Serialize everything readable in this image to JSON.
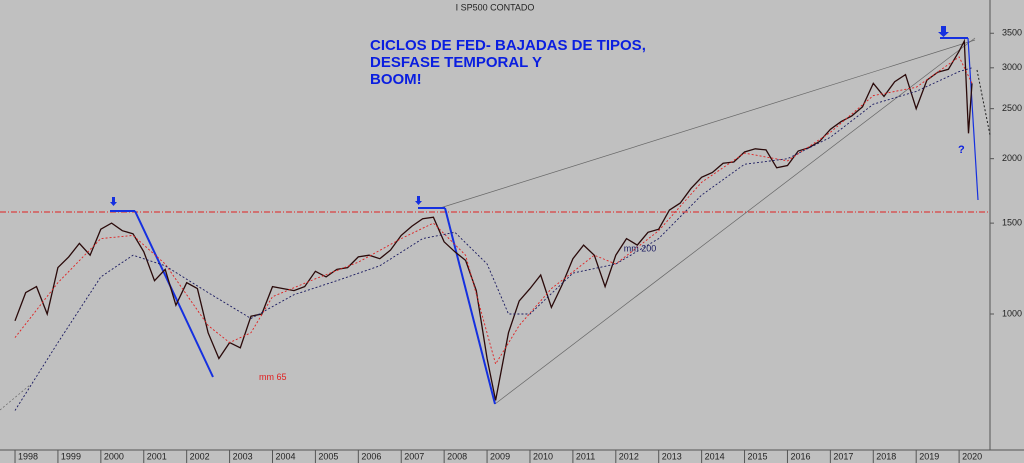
{
  "chart_data": {
    "type": "line",
    "title": "I SP500 CONTADO",
    "annotation": [
      "CICLOS DE FED- BAJADAS DE TIPOS,",
      "DESFASE TEMPORAL Y",
      "BOOM!"
    ],
    "question": "?",
    "log_scale": true,
    "xlim": [
      1997.65,
      2020.72
    ],
    "ylim": [
      545,
      4060
    ],
    "xticks": [
      1998,
      1999,
      2000,
      2001,
      2002,
      2003,
      2004,
      2005,
      2006,
      2007,
      2008,
      2009,
      2010,
      2011,
      2012,
      2013,
      2014,
      2015,
      2016,
      2017,
      2018,
      2019,
      2020
    ],
    "yticks": [
      1000,
      1500,
      2000,
      2500,
      3000,
      3500
    ],
    "series": [
      {
        "color": "#2a0a0a",
        "style": "solid",
        "x": [
          1998.0,
          1998.25,
          1998.5,
          1998.75,
          1999.0,
          1999.25,
          1999.5,
          1999.75,
          2000.0,
          2000.25,
          2000.5,
          2000.75,
          2001.0,
          2001.25,
          2001.5,
          2001.75,
          2002.0,
          2002.25,
          2002.5,
          2002.75,
          2003.0,
          2003.25,
          2003.5,
          2003.75,
          2004.0,
          2004.25,
          2004.5,
          2004.75,
          2005.0,
          2005.25,
          2005.5,
          2005.75,
          2006.0,
          2006.25,
          2006.5,
          2006.75,
          2007.0,
          2007.25,
          2007.5,
          2007.75,
          2008.0,
          2008.25,
          2008.5,
          2008.75,
          2009.0,
          2009.2,
          2009.5,
          2009.75,
          2010.0,
          2010.25,
          2010.5,
          2010.75,
          2011.0,
          2011.25,
          2011.5,
          2011.75,
          2012.0,
          2012.25,
          2012.5,
          2012.75,
          2013.0,
          2013.25,
          2013.5,
          2013.75,
          2014.0,
          2014.25,
          2014.5,
          2014.75,
          2015.0,
          2015.25,
          2015.5,
          2015.75,
          2016.0,
          2016.25,
          2016.5,
          2016.75,
          2017.0,
          2017.25,
          2017.5,
          2017.75,
          2018.0,
          2018.25,
          2018.5,
          2018.75,
          2019.0,
          2019.25,
          2019.5,
          2019.75,
          2020.0,
          2020.12,
          2020.22,
          2020.3
        ],
        "values": [
          970,
          1100,
          1130,
          1000,
          1230,
          1290,
          1370,
          1300,
          1460,
          1500,
          1450,
          1430,
          1320,
          1160,
          1220,
          1040,
          1150,
          1120,
          920,
          820,
          880,
          860,
          990,
          1000,
          1130,
          1120,
          1110,
          1130,
          1210,
          1180,
          1220,
          1230,
          1290,
          1300,
          1280,
          1330,
          1420,
          1480,
          1530,
          1540,
          1380,
          1320,
          1270,
          1110,
          820,
          680,
          920,
          1060,
          1120,
          1190,
          1030,
          1140,
          1280,
          1360,
          1300,
          1130,
          1300,
          1400,
          1360,
          1440,
          1460,
          1590,
          1640,
          1750,
          1840,
          1880,
          1960,
          1970,
          2060,
          2090,
          2080,
          1920,
          1940,
          2070,
          2100,
          2160,
          2280,
          2360,
          2420,
          2520,
          2800,
          2640,
          2820,
          2910,
          2500,
          2840,
          2940,
          2980,
          3230,
          3380,
          2240,
          2800
        ]
      },
      {
        "name": "mm 65",
        "color": "#e02020",
        "style": "dashed",
        "x": [
          1998.0,
          1999.0,
          2000.0,
          2000.75,
          2001.5,
          2002.5,
          2003.0,
          2003.5,
          2004.0,
          2005.0,
          2006.0,
          2007.0,
          2007.75,
          2008.5,
          2009.2,
          2009.75,
          2010.5,
          2011.5,
          2012.0,
          2013.0,
          2014.0,
          2015.0,
          2016.0,
          2017.0,
          2018.0,
          2019.0,
          2020.0,
          2020.3
        ],
        "values": [
          900,
          1150,
          1400,
          1420,
          1250,
          950,
          880,
          920,
          1080,
          1170,
          1260,
          1400,
          1500,
          1300,
          800,
          950,
          1120,
          1300,
          1250,
          1450,
          1800,
          2050,
          1980,
          2250,
          2650,
          2750,
          3150,
          2800
        ]
      },
      {
        "name": "mm 200",
        "color": "#1a1a60",
        "style": "dashed",
        "x": [
          1998.0,
          1999.0,
          2000.0,
          2000.75,
          2001.5,
          2002.5,
          2003.5,
          2004.5,
          2005.5,
          2006.5,
          2007.5,
          2008.25,
          2009.0,
          2009.5,
          2010.0,
          2011.0,
          2012.0,
          2013.0,
          2014.0,
          2015.0,
          2016.0,
          2017.0,
          2018.0,
          2019.0,
          2020.0,
          2020.3
        ],
        "values": [
          650,
          880,
          1180,
          1300,
          1240,
          1100,
          980,
          1090,
          1160,
          1240,
          1400,
          1440,
          1250,
          1000,
          1000,
          1200,
          1250,
          1400,
          1700,
          1950,
          2000,
          2200,
          2550,
          2700,
          2950,
          3000
        ]
      }
    ]
  }
}
